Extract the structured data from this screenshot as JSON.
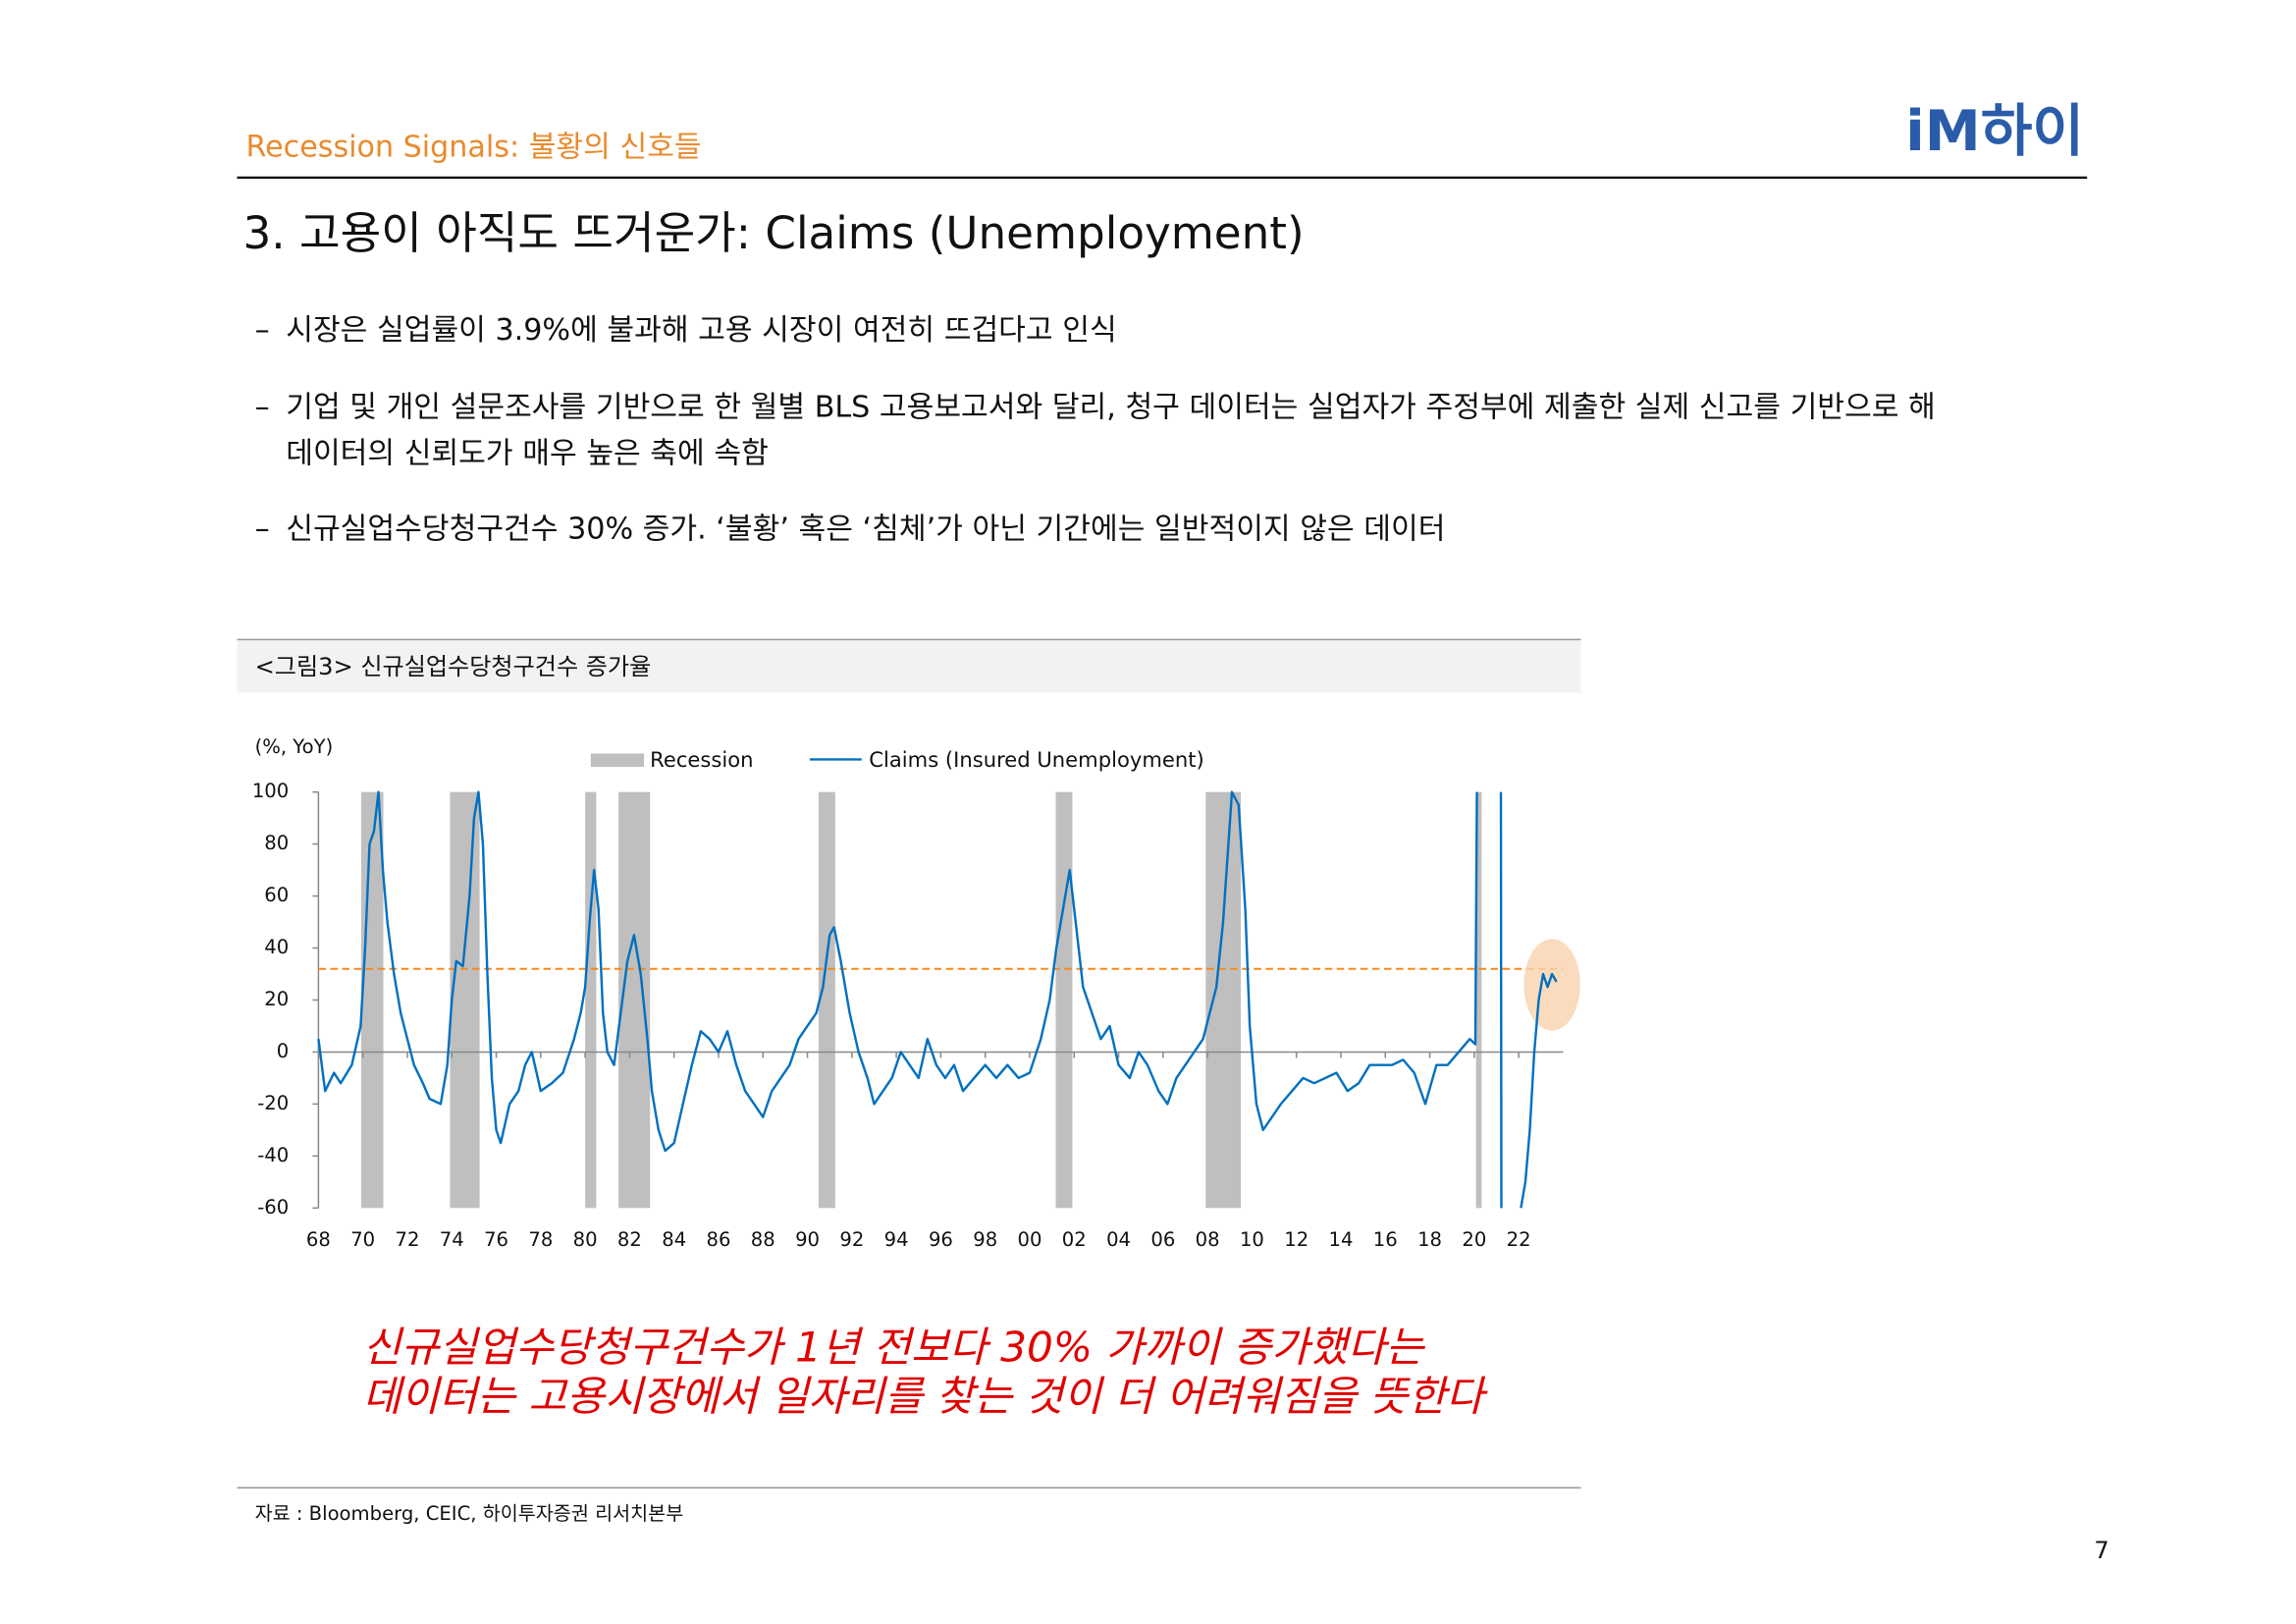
{
  "header": {
    "section": "Recession Signals: 불황의 신호들",
    "logo": "iM하이"
  },
  "title": "3. 고용이 아직도 뜨거운가: Claims (Unemployment)",
  "bullets": [
    [
      "시장은 실업률이 3.9%에 불과해 고용 시장이 여전히 뜨겁다고 인식"
    ],
    [
      "기업 및 개인 설문조사를 기반으로 한 월별 BLS 고용보고서와 달리, 청구 데이터는 실업자가 주정부에 제출한 실제 신고를 기반으로 해",
      "데이터의 신뢰도가 매우 높은 축에 속함"
    ],
    [
      "신규실업수당청구건수 30% 증가. ‘불황’ 혹은 ‘침체’가 아닌 기간에는 일반적이지 않은 데이터"
    ]
  ],
  "figure_caption": "<그림3> 신규실업수당청구건수 증가율",
  "chart_data": {
    "type": "line",
    "y_axis_label": "(%, YoY)",
    "recession_label": "Recession",
    "recession_color": "#bfbfbf",
    "recessions": [
      [
        1969.92,
        1970.92
      ],
      [
        1973.92,
        1975.25
      ],
      [
        1980.0,
        1980.5
      ],
      [
        1981.5,
        1982.92
      ],
      [
        1990.5,
        1991.25
      ],
      [
        2001.17,
        2001.92
      ],
      [
        2007.92,
        2009.5
      ],
      [
        2020.08,
        2020.33
      ]
    ],
    "reference_line": 32,
    "reference_color": "#f28a1e",
    "x": [
      1968.0,
      1968.3,
      1968.7,
      1969.0,
      1969.5,
      1969.9,
      1970.1,
      1970.3,
      1970.5,
      1970.7,
      1970.9,
      1971.1,
      1971.4,
      1971.7,
      1972.0,
      1972.3,
      1972.7,
      1973.0,
      1973.5,
      1973.8,
      1974.0,
      1974.2,
      1974.5,
      1974.8,
      1975.0,
      1975.2,
      1975.4,
      1975.6,
      1975.8,
      1976.0,
      1976.2,
      1976.6,
      1977.0,
      1977.3,
      1977.6,
      1978.0,
      1978.5,
      1979.0,
      1979.5,
      1979.8,
      1980.0,
      1980.2,
      1980.4,
      1980.6,
      1980.8,
      1981.0,
      1981.3,
      1981.6,
      1981.9,
      1982.2,
      1982.5,
      1982.8,
      1983.0,
      1983.3,
      1983.6,
      1984.0,
      1984.4,
      1984.8,
      1985.2,
      1985.6,
      1986.0,
      1986.4,
      1986.8,
      1987.2,
      1987.6,
      1988.0,
      1988.4,
      1988.8,
      1989.2,
      1989.6,
      1990.0,
      1990.4,
      1990.7,
      1991.0,
      1991.2,
      1991.5,
      1991.9,
      1992.3,
      1992.7,
      1993.0,
      1993.4,
      1993.8,
      1994.2,
      1994.6,
      1995.0,
      1995.4,
      1995.8,
      1996.2,
      1996.6,
      1997.0,
      1997.5,
      1998.0,
      1998.5,
      1999.0,
      1999.5,
      2000.0,
      2000.5,
      2000.9,
      2001.2,
      2001.5,
      2001.8,
      2002.0,
      2002.4,
      2002.8,
      2003.2,
      2003.6,
      2004.0,
      2004.5,
      2004.9,
      2005.3,
      2005.8,
      2006.2,
      2006.6,
      2007.0,
      2007.4,
      2007.8,
      2008.1,
      2008.4,
      2008.7,
      2008.9,
      2009.1,
      2009.4,
      2009.7,
      2009.9,
      2010.2,
      2010.5,
      2010.9,
      2011.3,
      2011.8,
      2012.3,
      2012.8,
      2013.3,
      2013.8,
      2014.3,
      2014.8,
      2015.3,
      2015.8,
      2016.3,
      2016.8,
      2017.3,
      2017.8,
      2018.3,
      2018.8,
      2019.3,
      2019.8,
      2020.05,
      2020.12,
      2020.6,
      2021.2,
      2021.22,
      2021.7,
      2022.1,
      2022.3,
      2022.5,
      2022.7,
      2022.9,
      2023.1,
      2023.3,
      2023.5,
      2023.7
    ],
    "series": [
      {
        "name": "Claims (Insured Unemployment)",
        "color": "#0070c0",
        "values": [
          5,
          -15,
          -8,
          -12,
          -5,
          10,
          40,
          80,
          85,
          100,
          70,
          50,
          30,
          15,
          5,
          -5,
          -12,
          -18,
          -20,
          -5,
          20,
          35,
          33,
          60,
          90,
          100,
          80,
          30,
          -10,
          -30,
          -35,
          -20,
          -15,
          -5,
          0,
          -15,
          -12,
          -8,
          5,
          15,
          25,
          50,
          70,
          55,
          15,
          0,
          -5,
          15,
          35,
          45,
          30,
          5,
          -15,
          -30,
          -38,
          -35,
          -20,
          -5,
          8,
          5,
          0,
          8,
          -5,
          -15,
          -20,
          -25,
          -15,
          -10,
          -5,
          5,
          10,
          15,
          25,
          45,
          48,
          35,
          15,
          0,
          -10,
          -20,
          -15,
          -10,
          0,
          -5,
          -10,
          5,
          -5,
          -10,
          -5,
          -15,
          -10,
          -5,
          -10,
          -5,
          -10,
          -8,
          5,
          20,
          40,
          55,
          70,
          55,
          25,
          15,
          5,
          10,
          -5,
          -10,
          0,
          -5,
          -15,
          -20,
          -10,
          -5,
          0,
          5,
          15,
          25,
          50,
          75,
          100,
          95,
          55,
          10,
          -20,
          -30,
          -25,
          -20,
          -15,
          -10,
          -12,
          -10,
          -8,
          -15,
          -12,
          -5,
          -5,
          -5,
          -3,
          -8,
          -20,
          -5,
          -5,
          0,
          5,
          3,
          100,
          null,
          100,
          -60,
          null,
          -60,
          -50,
          -30,
          0,
          20,
          30,
          25,
          30,
          27
        ]
      }
    ],
    "xlim": [
      1968,
      2024
    ],
    "ylim": [
      -60,
      100
    ],
    "yticks": [
      -60,
      -40,
      -20,
      0,
      20,
      40,
      60,
      80,
      100
    ],
    "xticks": [
      {
        "value": 1968,
        "label": "68"
      },
      {
        "value": 1970,
        "label": "70"
      },
      {
        "value": 1972,
        "label": "72"
      },
      {
        "value": 1974,
        "label": "74"
      },
      {
        "value": 1976,
        "label": "76"
      },
      {
        "value": 1978,
        "label": "78"
      },
      {
        "value": 1980,
        "label": "80"
      },
      {
        "value": 1982,
        "label": "82"
      },
      {
        "value": 1984,
        "label": "84"
      },
      {
        "value": 1986,
        "label": "86"
      },
      {
        "value": 1988,
        "label": "88"
      },
      {
        "value": 1990,
        "label": "90"
      },
      {
        "value": 1992,
        "label": "92"
      },
      {
        "value": 1994,
        "label": "94"
      },
      {
        "value": 1996,
        "label": "96"
      },
      {
        "value": 1998,
        "label": "98"
      },
      {
        "value": 2000,
        "label": "00"
      },
      {
        "value": 2002,
        "label": "02"
      },
      {
        "value": 2004,
        "label": "04"
      },
      {
        "value": 2006,
        "label": "06"
      },
      {
        "value": 2008,
        "label": "08"
      },
      {
        "value": 2010,
        "label": "10"
      },
      {
        "value": 2012,
        "label": "12"
      },
      {
        "value": 2014,
        "label": "14"
      },
      {
        "value": 2016,
        "label": "16"
      },
      {
        "value": 2018,
        "label": "18"
      },
      {
        "value": 2020,
        "label": "20"
      },
      {
        "value": 2022,
        "label": "22"
      }
    ]
  },
  "annotation": [
    "신규실업수당청구건수가 1년 전보다 30% 가까이 증가했다는",
    "데이터는 고용시장에서 일자리를 찾는 것이 더 어려워짐을 뜻한다"
  ],
  "source": "자료 : Bloomberg, CEIC, 하이투자증권 리서치본부",
  "page_number": "7"
}
